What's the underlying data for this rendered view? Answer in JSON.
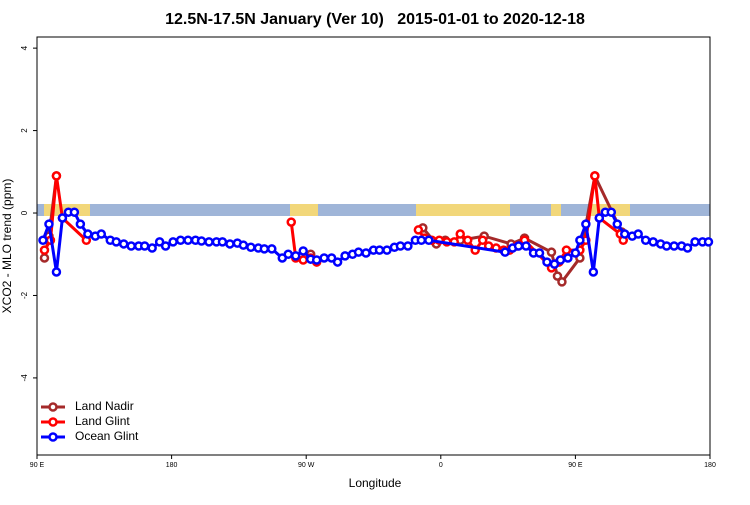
{
  "chart_data": {
    "type": "line",
    "title": "12.5N-17.5N January (Ver 10)   2015-01-01 to 2020-12-18",
    "xlabel": "Longitude",
    "ylabel": "XCO2 - MLO trend (ppm)",
    "xlim": [
      90,
      540
    ],
    "xticks": [
      {
        "value": 90,
        "label": "90 E"
      },
      {
        "value": 180,
        "label": "180"
      },
      {
        "value": 270,
        "label": "90 W"
      },
      {
        "value": 360,
        "label": "0"
      },
      {
        "value": 450,
        "label": "90 E"
      },
      {
        "value": 540,
        "label": "180"
      }
    ],
    "ylim": [
      -5.87,
      4.27
    ],
    "yticks": [
      4,
      2,
      0,
      -2,
      -4
    ],
    "legend": "bottom-left",
    "series": [
      {
        "name": "Land Nadir",
        "color": "#a52a2a",
        "x": [
          95,
          98,
          103,
          null,
          273,
          null,
          348,
          357,
          363,
          373,
          389,
          407,
          416,
          434,
          438,
          441,
          453,
          463,
          481
        ],
        "values": [
          -1.09,
          -0.56,
          0.9,
          null,
          -1.0,
          null,
          -0.36,
          -0.75,
          -0.66,
          -0.66,
          -0.56,
          -0.75,
          -0.61,
          -0.95,
          -1.53,
          -1.67,
          -1.09,
          0.9,
          -0.46
        ]
      },
      {
        "name": "Land Glint",
        "color": "#ff0000",
        "x": [
          95,
          99,
          103,
          107,
          123,
          null,
          260,
          263,
          268,
          273,
          277,
          null,
          345,
          349,
          354,
          359,
          364,
          369,
          373,
          378,
          383,
          388,
          392,
          397,
          402,
          406,
          411,
          416,
          434,
          439,
          444,
          453,
          457,
          463,
          466,
          480,
          482
        ],
        "values": [
          -0.9,
          -0.66,
          0.9,
          -0.12,
          -0.66,
          null,
          -0.22,
          -1.09,
          -1.14,
          -1.09,
          -1.19,
          null,
          -0.41,
          -0.61,
          -0.66,
          -0.66,
          -0.7,
          -0.7,
          -0.51,
          -0.66,
          -0.9,
          -0.66,
          -0.8,
          -0.85,
          -0.9,
          -0.9,
          -0.8,
          -0.66,
          -1.33,
          -1.19,
          -0.9,
          -0.9,
          -0.66,
          0.9,
          -0.12,
          -0.51,
          -0.66
        ]
      },
      {
        "name": "Ocean Glint",
        "color": "#0000ff",
        "x": [
          94,
          98,
          103,
          107,
          111,
          115,
          119,
          124,
          129,
          133,
          139,
          143,
          148,
          153,
          158,
          162,
          167,
          172,
          176,
          181,
          186,
          191,
          196,
          200,
          205,
          210,
          214,
          219,
          224,
          228,
          233,
          238,
          242,
          247,
          254,
          258,
          263,
          268,
          273,
          277,
          282,
          287,
          291,
          296,
          301,
          305,
          310,
          315,
          319,
          324,
          329,
          333,
          338,
          343,
          347,
          352,
          403,
          408,
          412,
          417,
          422,
          426,
          431,
          436,
          440,
          445,
          450,
          453,
          457,
          462,
          466,
          470,
          474,
          478,
          483,
          488,
          492,
          497,
          502,
          507,
          511,
          516,
          521,
          525,
          530,
          535,
          539
        ],
        "values": [
          -0.66,
          -0.27,
          -1.43,
          -0.12,
          0.02,
          0.02,
          -0.27,
          -0.51,
          -0.56,
          -0.51,
          -0.66,
          -0.7,
          -0.75,
          -0.8,
          -0.8,
          -0.8,
          -0.85,
          -0.7,
          -0.8,
          -0.7,
          -0.66,
          -0.66,
          -0.66,
          -0.68,
          -0.7,
          -0.7,
          -0.7,
          -0.75,
          -0.73,
          -0.78,
          -0.83,
          -0.85,
          -0.87,
          -0.87,
          -1.09,
          -1.0,
          -1.04,
          -0.92,
          -1.12,
          -1.14,
          -1.09,
          -1.09,
          -1.19,
          -1.04,
          -1.0,
          -0.95,
          -0.97,
          -0.9,
          -0.9,
          -0.9,
          -0.83,
          -0.8,
          -0.8,
          -0.66,
          -0.66,
          -0.66,
          -0.95,
          -0.85,
          -0.8,
          -0.8,
          -0.97,
          -0.97,
          -1.19,
          -1.24,
          -1.14,
          -1.09,
          -0.97,
          -0.66,
          -0.27,
          -1.43,
          -0.12,
          0.02,
          0.02,
          -0.27,
          -0.51,
          -0.56,
          -0.51,
          -0.66,
          -0.7,
          -0.75,
          -0.8,
          -0.8,
          -0.8,
          -0.85,
          -0.7,
          -0.7,
          -0.7
        ]
      }
    ]
  }
}
